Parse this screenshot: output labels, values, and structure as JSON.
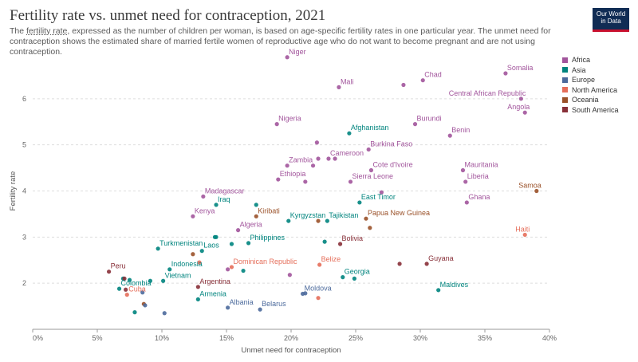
{
  "header": {
    "title": "Fertility rate vs. unmet need for contraception, 2021",
    "subtitle_prefix": "The ",
    "subtitle_link": "fertility rate",
    "subtitle_rest": ", expressed as the number of children per woman, is based on age-specific fertility rates in one particular year. The unmet need for contraception shows the estimated share of married fertile women of reproductive age who do not want to become pregnant and are not using contraception.",
    "logo_line1": "Our World",
    "logo_line2": "in Data"
  },
  "colors": {
    "Africa": "#a2559c",
    "Asia": "#00847e",
    "Europe": "#4c6a9c",
    "North America": "#e56e5a",
    "Oceania": "#9a5129",
    "South America": "#883039"
  },
  "chart_data": {
    "type": "scatter",
    "title": "Fertility rate vs. unmet need for contraception, 2021",
    "xlabel": "Unmet need for contraception",
    "ylabel": "Fertility rate",
    "xlim": [
      0,
      40
    ],
    "ylim": [
      1,
      7
    ],
    "x_ticks": [
      0,
      5,
      10,
      15,
      20,
      25,
      30,
      35,
      40
    ],
    "x_tick_labels": [
      "0%",
      "5%",
      "10%",
      "15%",
      "20%",
      "25%",
      "30%",
      "35%",
      "40%"
    ],
    "y_ticks": [
      2,
      3,
      4,
      5,
      6
    ],
    "y_tick_labels": [
      "2",
      "3",
      "4",
      "5",
      "6"
    ],
    "grid": "horizontal dashed",
    "legend_position": "right",
    "legend": [
      "Africa",
      "Asia",
      "Europe",
      "North America",
      "Oceania",
      "South America"
    ],
    "points": [
      {
        "x": 19.7,
        "y": 6.9,
        "group": "Africa",
        "label": "Niger"
      },
      {
        "x": 23.7,
        "y": 6.25,
        "group": "Africa",
        "label": "Mali"
      },
      {
        "x": 28.7,
        "y": 6.3,
        "group": "Africa"
      },
      {
        "x": 30.2,
        "y": 6.4,
        "group": "Africa",
        "label": "Chad"
      },
      {
        "x": 36.6,
        "y": 6.55,
        "group": "Africa",
        "label": "Somalia"
      },
      {
        "x": 37.8,
        "y": 6.0,
        "group": "Africa",
        "label": "Central African Republic"
      },
      {
        "x": 38.1,
        "y": 5.7,
        "group": "Africa",
        "label": "Angola"
      },
      {
        "x": 18.9,
        "y": 5.45,
        "group": "Africa",
        "label": "Nigeria"
      },
      {
        "x": 29.6,
        "y": 5.45,
        "group": "Africa",
        "label": "Burundi"
      },
      {
        "x": 32.3,
        "y": 5.2,
        "group": "Africa",
        "label": "Benin"
      },
      {
        "x": 22.0,
        "y": 5.05,
        "group": "Africa"
      },
      {
        "x": 24.5,
        "y": 5.25,
        "group": "Asia",
        "label": "Afghanistan"
      },
      {
        "x": 26.0,
        "y": 4.9,
        "group": "Africa",
        "label": "Burkina Faso"
      },
      {
        "x": 22.1,
        "y": 4.7,
        "group": "Africa"
      },
      {
        "x": 22.9,
        "y": 4.7,
        "group": "Africa",
        "label": "Cameroon"
      },
      {
        "x": 23.4,
        "y": 4.7,
        "group": "Africa"
      },
      {
        "x": 19.7,
        "y": 4.55,
        "group": "Africa",
        "label": "Zambia"
      },
      {
        "x": 21.7,
        "y": 4.55,
        "group": "Africa"
      },
      {
        "x": 26.2,
        "y": 4.45,
        "group": "Africa",
        "label": "Cote d'Ivoire"
      },
      {
        "x": 33.3,
        "y": 4.45,
        "group": "Africa",
        "label": "Mauritania"
      },
      {
        "x": 19.0,
        "y": 4.25,
        "group": "Africa",
        "label": "Ethiopia"
      },
      {
        "x": 21.1,
        "y": 4.2,
        "group": "Africa"
      },
      {
        "x": 24.6,
        "y": 4.2,
        "group": "Africa",
        "label": "Sierra Leone"
      },
      {
        "x": 33.5,
        "y": 4.2,
        "group": "Africa",
        "label": "Liberia"
      },
      {
        "x": 39.0,
        "y": 4.0,
        "group": "Oceania",
        "label": "Samoa"
      },
      {
        "x": 27.0,
        "y": 3.97,
        "group": "Africa"
      },
      {
        "x": 13.2,
        "y": 3.88,
        "group": "Africa",
        "label": "Madagascar"
      },
      {
        "x": 25.3,
        "y": 3.75,
        "group": "Asia",
        "label": "East Timor"
      },
      {
        "x": 33.6,
        "y": 3.75,
        "group": "Africa",
        "label": "Ghana"
      },
      {
        "x": 14.2,
        "y": 3.7,
        "group": "Asia",
        "label": "Iraq"
      },
      {
        "x": 17.3,
        "y": 3.7,
        "group": "Asia"
      },
      {
        "x": 12.4,
        "y": 3.45,
        "group": "Africa",
        "label": "Kenya"
      },
      {
        "x": 17.3,
        "y": 3.45,
        "group": "Oceania",
        "label": "Kiribati"
      },
      {
        "x": 19.8,
        "y": 3.35,
        "group": "Asia",
        "label": "Kyrgyzstan"
      },
      {
        "x": 22.1,
        "y": 3.35,
        "group": "Oceania"
      },
      {
        "x": 22.8,
        "y": 3.35,
        "group": "Asia",
        "label": "Tajikistan"
      },
      {
        "x": 25.8,
        "y": 3.4,
        "group": "Oceania",
        "label": "Papua New Guinea"
      },
      {
        "x": 26.1,
        "y": 3.2,
        "group": "Oceania"
      },
      {
        "x": 38.1,
        "y": 3.05,
        "group": "North America",
        "label": "Haiti"
      },
      {
        "x": 15.9,
        "y": 3.15,
        "group": "Africa",
        "label": "Algeria"
      },
      {
        "x": 14.1,
        "y": 3.0,
        "group": "Asia"
      },
      {
        "x": 14.2,
        "y": 3.0,
        "group": "Asia"
      },
      {
        "x": 15.4,
        "y": 2.85,
        "group": "Asia"
      },
      {
        "x": 16.7,
        "y": 2.87,
        "group": "Asia",
        "label": "Philippines"
      },
      {
        "x": 22.6,
        "y": 2.9,
        "group": "Asia"
      },
      {
        "x": 23.8,
        "y": 2.85,
        "group": "South America",
        "label": "Bolivia"
      },
      {
        "x": 9.7,
        "y": 2.75,
        "group": "Asia",
        "label": "Turkmenistan"
      },
      {
        "x": 13.1,
        "y": 2.7,
        "group": "Asia",
        "label": "Laos"
      },
      {
        "x": 12.4,
        "y": 2.63,
        "group": "Oceania"
      },
      {
        "x": 12.9,
        "y": 2.45,
        "group": "North America"
      },
      {
        "x": 10.6,
        "y": 2.3,
        "group": "Asia",
        "label": "Indonesia"
      },
      {
        "x": 15.1,
        "y": 2.3,
        "group": "Africa"
      },
      {
        "x": 15.4,
        "y": 2.35,
        "group": "North America",
        "label": "Dominican Republic"
      },
      {
        "x": 16.3,
        "y": 2.27,
        "group": "Asia"
      },
      {
        "x": 19.9,
        "y": 2.18,
        "group": "Africa"
      },
      {
        "x": 22.2,
        "y": 2.4,
        "group": "North America",
        "label": "Belize"
      },
      {
        "x": 28.4,
        "y": 2.42,
        "group": "South America"
      },
      {
        "x": 30.5,
        "y": 2.42,
        "group": "South America",
        "label": "Guyana"
      },
      {
        "x": 5.9,
        "y": 2.25,
        "group": "South America",
        "label": "Peru"
      },
      {
        "x": 24.0,
        "y": 2.13,
        "group": "Asia",
        "label": "Georgia"
      },
      {
        "x": 24.9,
        "y": 2.1,
        "group": "Asia"
      },
      {
        "x": 7.0,
        "y": 2.1,
        "group": "Asia"
      },
      {
        "x": 7.1,
        "y": 2.1,
        "group": "South America"
      },
      {
        "x": 7.5,
        "y": 2.07,
        "group": "Asia"
      },
      {
        "x": 9.1,
        "y": 2.05,
        "group": "Asia"
      },
      {
        "x": 10.1,
        "y": 2.05,
        "group": "Asia",
        "label": "Vietnam"
      },
      {
        "x": 12.8,
        "y": 1.92,
        "group": "South America",
        "label": "Argentina"
      },
      {
        "x": 6.7,
        "y": 1.88,
        "group": "Asia",
        "label": "Colombia"
      },
      {
        "x": 7.2,
        "y": 1.86,
        "group": "South America"
      },
      {
        "x": 8.5,
        "y": 1.8,
        "group": "Europe"
      },
      {
        "x": 7.3,
        "y": 1.75,
        "group": "North America",
        "label": "Cuba"
      },
      {
        "x": 12.8,
        "y": 1.65,
        "group": "Asia",
        "label": "Armenia"
      },
      {
        "x": 31.4,
        "y": 1.85,
        "group": "Asia",
        "label": "Maldives"
      },
      {
        "x": 20.9,
        "y": 1.77,
        "group": "Europe",
        "label": "Moldova"
      },
      {
        "x": 21.1,
        "y": 1.78,
        "group": "Europe"
      },
      {
        "x": 22.1,
        "y": 1.68,
        "group": "North America"
      },
      {
        "x": 8.6,
        "y": 1.55,
        "group": "Oceania"
      },
      {
        "x": 8.7,
        "y": 1.52,
        "group": "Europe"
      },
      {
        "x": 15.1,
        "y": 1.47,
        "group": "Europe",
        "label": "Albania"
      },
      {
        "x": 17.6,
        "y": 1.43,
        "group": "Europe",
        "label": "Belarus"
      },
      {
        "x": 7.9,
        "y": 1.37,
        "group": "Asia"
      },
      {
        "x": 10.2,
        "y": 1.35,
        "group": "Europe"
      }
    ]
  }
}
